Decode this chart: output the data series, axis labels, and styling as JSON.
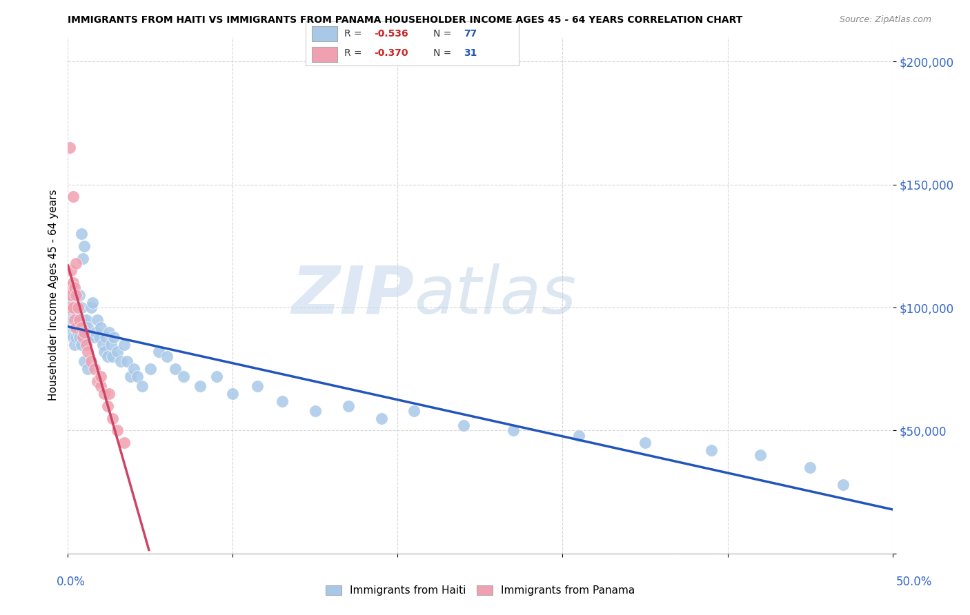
{
  "title": "IMMIGRANTS FROM HAITI VS IMMIGRANTS FROM PANAMA HOUSEHOLDER INCOME AGES 45 - 64 YEARS CORRELATION CHART",
  "source": "Source: ZipAtlas.com",
  "ylabel": "Householder Income Ages 45 - 64 years",
  "xlim": [
    0.0,
    0.5
  ],
  "ylim": [
    0,
    210000
  ],
  "haiti_color": "#a8c8e8",
  "panama_color": "#f0a0b0",
  "haiti_line_color": "#2255BB",
  "panama_line_color": "#CC4466",
  "haiti_R": -0.536,
  "haiti_N": 77,
  "panama_R": -0.37,
  "panama_N": 31,
  "watermark_zip": "ZIP",
  "watermark_atlas": "atlas",
  "haiti_scatter_x": [
    0.001,
    0.001,
    0.002,
    0.002,
    0.002,
    0.003,
    0.003,
    0.003,
    0.004,
    0.004,
    0.004,
    0.005,
    0.005,
    0.005,
    0.006,
    0.006,
    0.006,
    0.007,
    0.007,
    0.007,
    0.008,
    0.008,
    0.009,
    0.009,
    0.01,
    0.01,
    0.011,
    0.012,
    0.013,
    0.014,
    0.015,
    0.016,
    0.017,
    0.018,
    0.019,
    0.02,
    0.021,
    0.022,
    0.023,
    0.024,
    0.025,
    0.026,
    0.027,
    0.028,
    0.03,
    0.032,
    0.034,
    0.036,
    0.038,
    0.04,
    0.042,
    0.045,
    0.05,
    0.055,
    0.06,
    0.065,
    0.07,
    0.08,
    0.09,
    0.1,
    0.115,
    0.13,
    0.15,
    0.17,
    0.19,
    0.21,
    0.24,
    0.27,
    0.31,
    0.35,
    0.39,
    0.42,
    0.45,
    0.47,
    0.01,
    0.008,
    0.012
  ],
  "haiti_scatter_y": [
    100000,
    95000,
    102000,
    90000,
    108000,
    98000,
    95000,
    88000,
    100000,
    92000,
    85000,
    102000,
    97000,
    88000,
    100000,
    95000,
    90000,
    105000,
    95000,
    88000,
    130000,
    100000,
    120000,
    95000,
    125000,
    92000,
    95000,
    92000,
    88000,
    100000,
    102000,
    88000,
    90000,
    95000,
    88000,
    92000,
    85000,
    82000,
    88000,
    80000,
    90000,
    85000,
    80000,
    88000,
    82000,
    78000,
    85000,
    78000,
    72000,
    75000,
    72000,
    68000,
    75000,
    82000,
    80000,
    75000,
    72000,
    68000,
    72000,
    65000,
    68000,
    62000,
    58000,
    60000,
    55000,
    58000,
    52000,
    50000,
    48000,
    45000,
    42000,
    40000,
    35000,
    28000,
    78000,
    85000,
    75000
  ],
  "panama_scatter_x": [
    0.001,
    0.001,
    0.002,
    0.002,
    0.003,
    0.003,
    0.004,
    0.004,
    0.005,
    0.005,
    0.006,
    0.007,
    0.008,
    0.009,
    0.01,
    0.011,
    0.012,
    0.014,
    0.016,
    0.018,
    0.02,
    0.022,
    0.024,
    0.027,
    0.03,
    0.034,
    0.001,
    0.003,
    0.005,
    0.025,
    0.02
  ],
  "panama_scatter_y": [
    108000,
    100000,
    115000,
    105000,
    110000,
    100000,
    108000,
    95000,
    105000,
    92000,
    100000,
    95000,
    92000,
    88000,
    90000,
    85000,
    82000,
    78000,
    75000,
    70000,
    68000,
    65000,
    60000,
    55000,
    50000,
    45000,
    165000,
    145000,
    118000,
    65000,
    72000
  ]
}
